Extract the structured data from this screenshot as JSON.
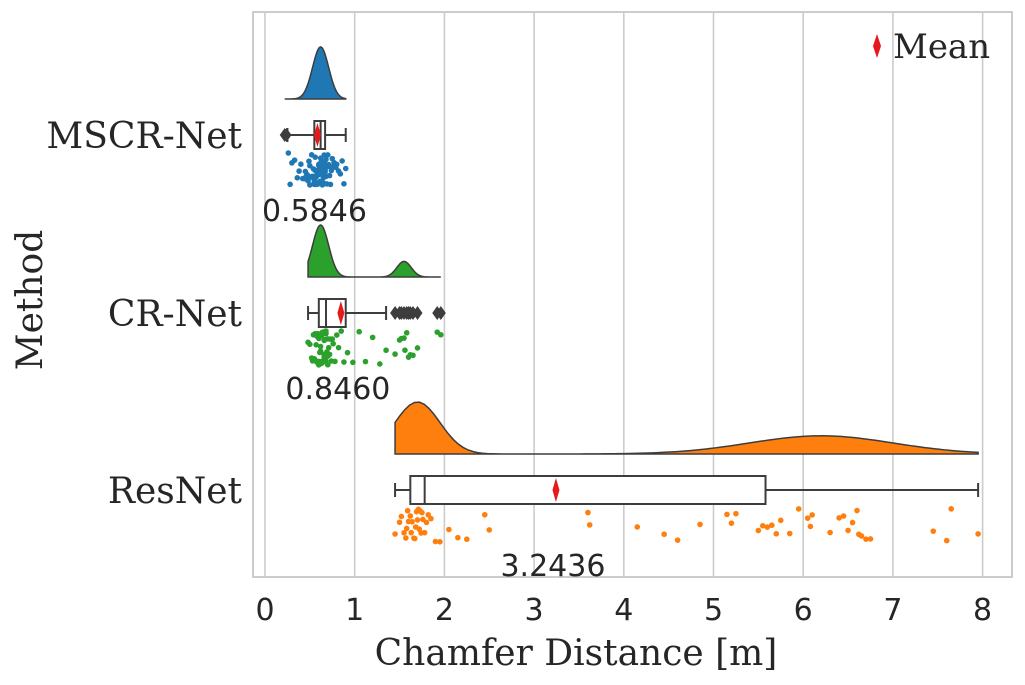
{
  "chart_data": {
    "type": "raincloud",
    "xlabel": "Chamfer Distance [m]",
    "ylabel": "Method",
    "xlim": [
      -0.15,
      8.3
    ],
    "xticks": [
      "0",
      "1",
      "2",
      "3",
      "4",
      "5",
      "6",
      "7",
      "8"
    ],
    "xtick_values": [
      0,
      1,
      2,
      3,
      4,
      5,
      6,
      7,
      8
    ],
    "grid": "vertical",
    "legend": {
      "position": "top-right",
      "label": "Mean",
      "marker": "thin-diamond",
      "color": "#e41a1c"
    },
    "series": [
      {
        "name": "MSCR-Net",
        "color": "#1f77b4",
        "mean": 0.5846,
        "mean_label": "0.5846",
        "box": {
          "whisker_low": 0.25,
          "q1": 0.55,
          "median": 0.62,
          "q3": 0.67,
          "whisker_high": 0.9
        },
        "outliers": [
          0.22,
          0.24
        ],
        "kde_range": [
          0.22,
          0.9
        ],
        "kde_peaks": [
          {
            "x": 0.62,
            "h": 1.0,
            "w": 0.09
          }
        ],
        "points": [
          0.26,
          0.28,
          0.3,
          0.33,
          0.36,
          0.38,
          0.4,
          0.42,
          0.44,
          0.45,
          0.46,
          0.47,
          0.48,
          0.49,
          0.5,
          0.51,
          0.52,
          0.52,
          0.53,
          0.54,
          0.55,
          0.55,
          0.56,
          0.56,
          0.57,
          0.57,
          0.58,
          0.58,
          0.59,
          0.59,
          0.6,
          0.6,
          0.61,
          0.61,
          0.62,
          0.62,
          0.63,
          0.63,
          0.64,
          0.64,
          0.65,
          0.65,
          0.66,
          0.66,
          0.67,
          0.67,
          0.68,
          0.68,
          0.69,
          0.7,
          0.7,
          0.71,
          0.72,
          0.73,
          0.74,
          0.75,
          0.76,
          0.77,
          0.78,
          0.79,
          0.8,
          0.82,
          0.84,
          0.86,
          0.88,
          0.9,
          0.55,
          0.6,
          0.65,
          0.58,
          0.62,
          0.68,
          0.5,
          0.72,
          0.57,
          0.63,
          0.61,
          0.66
        ]
      },
      {
        "name": "CR-Net",
        "color": "#2ca02c",
        "mean": 0.846,
        "mean_label": "0.8460",
        "box": {
          "whisker_low": 0.48,
          "q1": 0.6,
          "median": 0.68,
          "q3": 0.9,
          "whisker_high": 1.35
        },
        "outliers": [
          1.45,
          1.5,
          1.52,
          1.55,
          1.58,
          1.6,
          1.62,
          1.65,
          1.7,
          1.92,
          1.96
        ],
        "kde_range": [
          0.48,
          1.96
        ],
        "kde_peaks": [
          {
            "x": 0.62,
            "h": 1.0,
            "w": 0.09
          },
          {
            "x": 1.55,
            "h": 0.3,
            "w": 0.08
          }
        ],
        "points": [
          0.48,
          0.5,
          0.52,
          0.53,
          0.54,
          0.55,
          0.56,
          0.57,
          0.58,
          0.59,
          0.6,
          0.6,
          0.61,
          0.61,
          0.62,
          0.62,
          0.63,
          0.63,
          0.64,
          0.64,
          0.65,
          0.65,
          0.66,
          0.66,
          0.67,
          0.67,
          0.68,
          0.68,
          0.69,
          0.7,
          0.7,
          0.71,
          0.72,
          0.73,
          0.74,
          0.75,
          0.76,
          0.78,
          0.8,
          0.82,
          0.85,
          0.88,
          0.92,
          0.98,
          1.05,
          1.12,
          1.2,
          1.28,
          1.35,
          1.45,
          1.5,
          1.52,
          1.55,
          1.56,
          1.58,
          1.6,
          1.62,
          1.65,
          1.7,
          1.92,
          1.96,
          0.58,
          0.62,
          0.66,
          0.6,
          0.64,
          0.68,
          0.56,
          0.7,
          0.63
        ]
      },
      {
        "name": "ResNet",
        "color": "#ff7f0e",
        "mean": 3.2436,
        "mean_label": "3.2436",
        "box": {
          "whisker_low": 1.45,
          "q1": 1.62,
          "median": 1.78,
          "q3": 5.58,
          "whisker_high": 7.95
        },
        "outliers": [],
        "kde_range": [
          1.45,
          7.95
        ],
        "kde_peaks": [
          {
            "x": 1.7,
            "h": 1.0,
            "w": 0.25
          },
          {
            "x": 6.2,
            "h": 0.35,
            "w": 0.8
          }
        ],
        "points": [
          1.45,
          1.5,
          1.52,
          1.55,
          1.57,
          1.6,
          1.62,
          1.64,
          1.66,
          1.68,
          1.7,
          1.72,
          1.74,
          1.76,
          1.78,
          1.8,
          1.82,
          1.85,
          1.9,
          1.95,
          2.05,
          2.15,
          2.25,
          2.45,
          2.5,
          3.6,
          3.62,
          4.15,
          4.45,
          4.6,
          4.85,
          5.15,
          5.2,
          5.25,
          5.5,
          5.55,
          5.6,
          5.65,
          5.7,
          5.75,
          5.85,
          5.95,
          6.05,
          6.08,
          6.1,
          6.3,
          6.4,
          6.45,
          6.5,
          6.55,
          6.6,
          6.62,
          6.65,
          6.7,
          6.75,
          7.45,
          7.6,
          7.65,
          7.95,
          1.58,
          1.63,
          1.67,
          1.71,
          1.75,
          1.59,
          1.69,
          1.73
        ]
      }
    ]
  }
}
